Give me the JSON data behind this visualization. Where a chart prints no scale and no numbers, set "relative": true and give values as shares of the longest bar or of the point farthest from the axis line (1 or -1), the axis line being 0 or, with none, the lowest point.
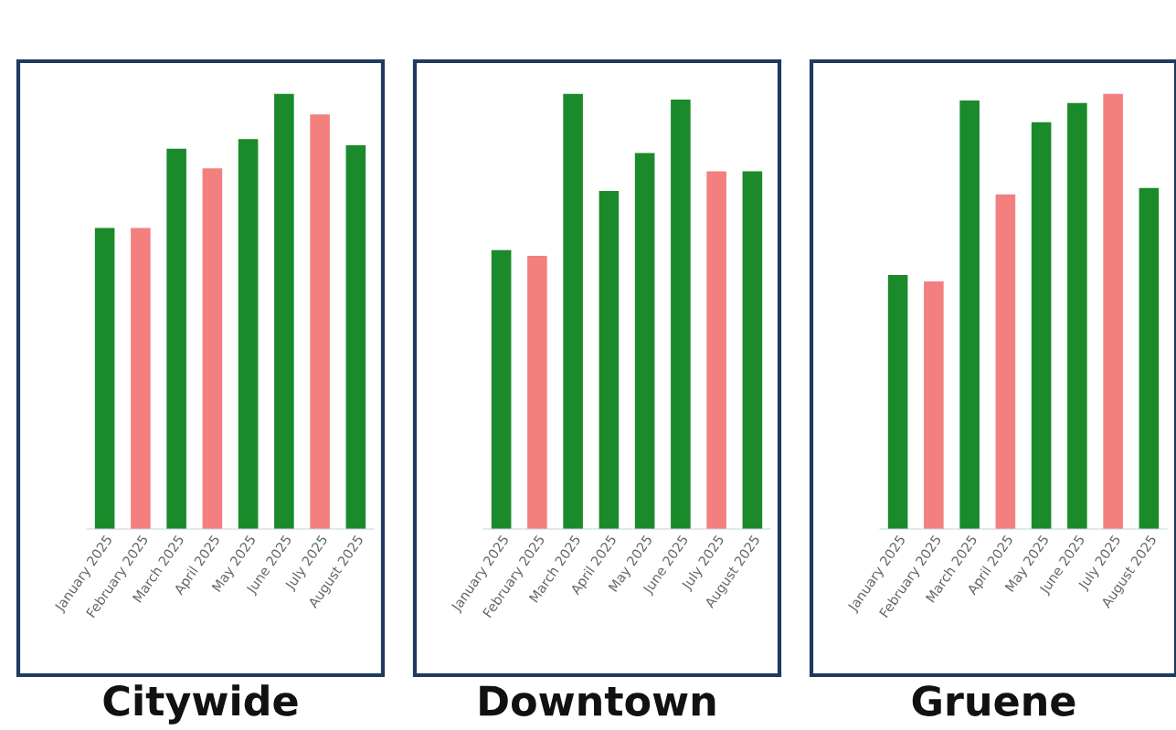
{
  "chart_data": [
    {
      "type": "bar",
      "title": "Citywide",
      "relative": true,
      "categories": [
        "January 2025",
        "February 2025",
        "March 2025",
        "April 2025",
        "May 2025",
        "June 2025",
        "July 2025",
        "August 2025"
      ],
      "values": [
        0.692,
        0.692,
        0.874,
        0.829,
        0.896,
        1,
        0.953,
        0.882
      ],
      "colors": [
        "#1a8a2a",
        "#f47f7f",
        "#1a8a2a",
        "#f47f7f",
        "#1a8a2a",
        "#1a8a2a",
        "#f47f7f",
        "#1a8a2a"
      ]
    },
    {
      "type": "bar",
      "title": "Downtown",
      "relative": true,
      "categories": [
        "January 2025",
        "February 2025",
        "March 2025",
        "April 2025",
        "May 2025",
        "June 2025",
        "July 2025",
        "August 2025"
      ],
      "values": [
        0.641,
        0.628,
        1,
        0.777,
        0.864,
        0.987,
        0.822,
        0.822
      ],
      "colors": [
        "#1a8a2a",
        "#f47f7f",
        "#1a8a2a",
        "#1a8a2a",
        "#1a8a2a",
        "#1a8a2a",
        "#f47f7f",
        "#1a8a2a"
      ]
    },
    {
      "type": "bar",
      "title": "Gruene",
      "relative": true,
      "categories": [
        "January 2025",
        "February 2025",
        "March 2025",
        "April 2025",
        "May 2025",
        "June 2025",
        "July 2025",
        "August 2025"
      ],
      "values": [
        0.584,
        0.569,
        0.985,
        0.769,
        0.935,
        0.979,
        1,
        0.784
      ],
      "colors": [
        "#1a8a2a",
        "#f47f7f",
        "#1a8a2a",
        "#f47f7f",
        "#1a8a2a",
        "#1a8a2a",
        "#f47f7f",
        "#1a8a2a"
      ]
    }
  ]
}
